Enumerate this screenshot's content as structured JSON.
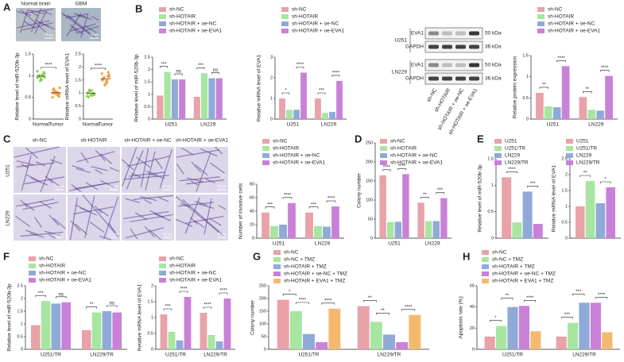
{
  "figure": {
    "micrographs": {
      "A_titles": [
        "Normal brain",
        "GBM"
      ],
      "C_titles": [
        "sh-NC",
        "sh-HOTAIR",
        "sh-HOTAIR + oe-NC",
        "sh-HOTAIR + oe-EVA1"
      ],
      "C_rows": [
        "U251",
        "LN229"
      ],
      "scale": "50 μm"
    },
    "blot": {
      "rows": [
        "EVA1",
        "GAPDH",
        "EVA1",
        "GAPDH"
      ],
      "kda": [
        "50 kDa",
        "36 kDa",
        "50 kDa",
        "36 kDa"
      ],
      "cells": [
        "U251",
        "LN229"
      ],
      "lanes": [
        "sh-NC",
        "sh-HOTAIR",
        "sh-HOTAIR + oe-NC",
        "sh-HOTAIR + oe-EVA1"
      ]
    }
  },
  "chart_data": [
    {
      "type": "strip",
      "panel": "A",
      "ylabel": "Relative level of miR-520b-3p",
      "categories": [
        "Normal",
        "Tumor"
      ],
      "colors": [
        "#8fd14f",
        "#f5a142"
      ],
      "values": [
        [
          0.95,
          1.02,
          0.98,
          1.05,
          0.9,
          1.0,
          1.08,
          0.93,
          0.97,
          1.03,
          0.88,
          1.1,
          0.99,
          1.01,
          0.96
        ],
        [
          0.6,
          0.55,
          0.65,
          0.58,
          0.62,
          0.7,
          0.52,
          0.6,
          0.67,
          0.57,
          0.63,
          0.5,
          0.61,
          0.59,
          0.72
        ]
      ],
      "ylim": [
        0,
        1.5
      ],
      "yticks": [
        0,
        0.5,
        1,
        1.5
      ],
      "significance": [
        [
          "****"
        ]
      ]
    },
    {
      "type": "strip",
      "ylabel": "Relative mRNA level of EVA1",
      "categories": [
        "Normal",
        "Tumor"
      ],
      "colors": [
        "#8fd14f",
        "#f5a142"
      ],
      "values": [
        [
          1.0,
          0.9,
          1.05,
          0.95,
          1.1,
          0.85,
          1.0,
          0.92,
          1.02,
          0.97,
          1.08,
          0.88,
          0.98,
          1.12,
          0.94
        ],
        [
          1.5,
          1.4,
          1.6,
          1.7,
          1.45,
          1.55,
          1.8,
          1.35,
          1.5,
          1.65,
          1.3,
          1.75,
          1.48,
          1.58,
          1.62
        ]
      ],
      "ylim": [
        0,
        2.5
      ],
      "yticks": [
        0,
        0.5,
        1,
        1.5,
        2,
        2.5
      ],
      "significance": [
        [
          "****"
        ]
      ]
    },
    {
      "type": "bar",
      "panel": "B",
      "ylabel": "Relative level of miR-520b-3p",
      "categories": [
        "U251",
        "LN229"
      ],
      "series": [
        {
          "name": "sh-NC",
          "color": "#e8a2a8",
          "values": [
            0.95,
            0.9
          ]
        },
        {
          "name": "sh-HOTAIR",
          "color": "#a6e6a0",
          "values": [
            1.9,
            1.85
          ]
        },
        {
          "name": "sh-HOTAIR + oe-NC",
          "color": "#8faad8",
          "values": [
            1.6,
            1.65
          ]
        },
        {
          "name": "sh-HOTAIR + oe-EVA1",
          "color": "#c981d8",
          "values": [
            1.6,
            1.65
          ]
        }
      ],
      "ylim": [
        0,
        2.5
      ],
      "yticks": [
        0,
        0.5,
        1,
        1.5,
        2,
        2.5
      ],
      "significance": [
        [
          "***",
          "ns"
        ],
        [
          "***",
          "ns"
        ]
      ]
    },
    {
      "type": "bar",
      "ylabel": "Relative mRNA level of EVA1",
      "categories": [
        "U251",
        "LN229"
      ],
      "series": [
        {
          "name": "sh-NC",
          "color": "#e8a2a8",
          "values": [
            1.0,
            1.0
          ]
        },
        {
          "name": "sh-HOTAIR",
          "color": "#a6e6a0",
          "values": [
            0.45,
            0.3
          ]
        },
        {
          "name": "sh-HOTAIR + oe-NC",
          "color": "#8faad8",
          "values": [
            0.45,
            0.35
          ]
        },
        {
          "name": "sh-HOTAIR + oe-EVA1",
          "color": "#c981d8",
          "values": [
            2.25,
            1.85
          ]
        }
      ],
      "ylim": [
        0,
        3
      ],
      "yticks": [
        0,
        1,
        2,
        3
      ],
      "significance": [
        [
          "*",
          "****"
        ],
        [
          "***",
          "****"
        ]
      ]
    },
    {
      "type": "bar",
      "ylabel": "Relative protein expression",
      "categories": [
        "U251",
        "LN229"
      ],
      "series": [
        {
          "name": "sh-NC",
          "color": "#e8a2a8",
          "values": [
            0.62,
            0.52
          ]
        },
        {
          "name": "sh-HOTAIR",
          "color": "#a6e6a0",
          "values": [
            0.3,
            0.22
          ]
        },
        {
          "name": "sh-HOTAIR + oe-NC",
          "color": "#8faad8",
          "values": [
            0.28,
            0.2
          ]
        },
        {
          "name": "sh-HOTAIR + oe-EVA1",
          "color": "#c981d8",
          "values": [
            1.25,
            1.02
          ]
        }
      ],
      "ylim": [
        0,
        1.5
      ],
      "yticks": [
        0,
        0.5,
        1,
        1.5
      ],
      "significance": [
        [
          "**",
          "****"
        ],
        [
          "**",
          "****"
        ]
      ]
    },
    {
      "type": "bar",
      "panel": "C",
      "ylabel": "Number of invasive cells",
      "categories": [
        "U251",
        "LN229"
      ],
      "series": [
        {
          "name": "sh-NC",
          "color": "#e8a2a8",
          "values": [
            38,
            38
          ]
        },
        {
          "name": "sh-HOTAIR",
          "color": "#a6e6a0",
          "values": [
            18,
            18
          ]
        },
        {
          "name": "sh-HOTAIR + oe-NC",
          "color": "#8faad8",
          "values": [
            20,
            17
          ]
        },
        {
          "name": "sh-HOTAIR + oe-EVA1",
          "color": "#c981d8",
          "values": [
            52,
            47
          ]
        }
      ],
      "ylim": [
        0,
        80
      ],
      "yticks": [
        0,
        20,
        40,
        60,
        80
      ],
      "significance": [
        [
          "***",
          "****"
        ],
        [
          "***",
          "****"
        ]
      ]
    },
    {
      "type": "bar",
      "panel": "D",
      "ylabel": "Colony number",
      "categories": [
        "U251",
        "LN229"
      ],
      "series": [
        {
          "name": "sh-NC",
          "color": "#e8a2a8",
          "values": [
            165,
            93
          ]
        },
        {
          "name": "sh-HOTAIR",
          "color": "#a6e6a0",
          "values": [
            42,
            45
          ]
        },
        {
          "name": "sh-HOTAIR + oe-NC",
          "color": "#8faad8",
          "values": [
            43,
            45
          ]
        },
        {
          "name": "sh-HOTAIR + oe-EVA1",
          "color": "#c981d8",
          "values": [
            168,
            105
          ]
        }
      ],
      "ylim": [
        0,
        250
      ],
      "yticks": [
        0,
        50,
        100,
        150,
        200,
        250
      ],
      "significance": [
        [
          "****",
          "****"
        ],
        [
          "**",
          "***"
        ]
      ]
    },
    {
      "type": "bar",
      "panel": "E",
      "ylabel": "Relative level of miR-520b-3p",
      "categories": [
        null
      ],
      "series": [
        {
          "name": "U251",
          "color": "#e8a2a8",
          "values": [
            1.15
          ]
        },
        {
          "name": "U251/TR",
          "color": "#a6e6a0",
          "values": [
            0.3
          ]
        },
        {
          "name": "LN229",
          "color": "#8faad8",
          "values": [
            0.88
          ]
        },
        {
          "name": "LN229/TR",
          "color": "#c981d8",
          "values": [
            0.27
          ]
        }
      ],
      "ylim": [
        0,
        1.5
      ],
      "yticks": [
        0,
        0.5,
        1,
        1.5
      ],
      "significance": [
        [
          "****",
          "***"
        ]
      ]
    },
    {
      "type": "bar",
      "ylabel": "Relative mRNA level of EVA1",
      "categories": [
        null
      ],
      "series": [
        {
          "name": "U251",
          "color": "#e8a2a8",
          "values": [
            1.0
          ]
        },
        {
          "name": "U251/TR",
          "color": "#a6e6a0",
          "values": [
            1.8
          ]
        },
        {
          "name": "LN229",
          "color": "#8faad8",
          "values": [
            1.1
          ]
        },
        {
          "name": "LN229/TR",
          "color": "#c981d8",
          "values": [
            1.6
          ]
        }
      ],
      "ylim": [
        0,
        2.5
      ],
      "yticks": [
        0,
        0.5,
        1,
        1.5,
        2,
        2.5
      ],
      "significance": [
        [
          "**",
          "*"
        ]
      ]
    },
    {
      "type": "bar",
      "panel": "F",
      "ylabel": "Relative level of miR-520b-3p",
      "categories": [
        "U251/TR",
        "LN229/TR"
      ],
      "series": [
        {
          "name": "sh-NC",
          "color": "#e8a2a8",
          "values": [
            0.95,
            0.75
          ]
        },
        {
          "name": "sh-HOTAIR",
          "color": "#a6e6a0",
          "values": [
            1.9,
            1.45
          ]
        },
        {
          "name": "sh-HOTAIR + oe-NC",
          "color": "#8faad8",
          "values": [
            1.8,
            1.5
          ]
        },
        {
          "name": "sh-HOTAIR + oe-EVA1",
          "color": "#c981d8",
          "values": [
            1.85,
            1.45
          ]
        }
      ],
      "ylim": [
        0,
        2.5
      ],
      "yticks": [
        0,
        0.5,
        1,
        1.5,
        2,
        2.5
      ],
      "significance": [
        [
          "***",
          "ns"
        ],
        [
          "**",
          "ns"
        ]
      ]
    },
    {
      "type": "bar",
      "ylabel": "Relative mRNA level of EVA1",
      "categories": [
        "U251/TR",
        "LN229/TR"
      ],
      "series": [
        {
          "name": "sh-NC",
          "color": "#e8a2a8",
          "values": [
            1.1,
            1.15
          ]
        },
        {
          "name": "sh-HOTAIR",
          "color": "#a6e6a0",
          "values": [
            0.55,
            0.45
          ]
        },
        {
          "name": "sh-HOTAIR + oe-NC",
          "color": "#8faad8",
          "values": [
            0.28,
            0.25
          ]
        },
        {
          "name": "sh-HOTAIR + oe-EVA1",
          "color": "#c981d8",
          "values": [
            1.65,
            1.6
          ]
        }
      ],
      "ylim": [
        0,
        2
      ],
      "yticks": [
        0,
        0.5,
        1,
        1.5,
        2
      ],
      "significance": [
        [
          "***",
          "****"
        ],
        [
          "****",
          "****"
        ]
      ]
    },
    {
      "type": "bar",
      "panel": "G",
      "ylabel": "Colony number",
      "categories": [
        "U251/TR",
        "LN229/TR"
      ],
      "series": [
        {
          "name": "sh-NC",
          "color": "#e8a2a8",
          "values": [
            195,
            170
          ]
        },
        {
          "name": "sh-NC + TMZ",
          "color": "#a6e6a0",
          "values": [
            150,
            108
          ]
        },
        {
          "name": "sh-HOTAIR + TMZ",
          "color": "#8faad8",
          "values": [
            60,
            58
          ]
        },
        {
          "name": "sh-HOTAIR + oe-NC + TMZ",
          "color": "#c981d8",
          "values": [
            28,
            28
          ]
        },
        {
          "name": "sh-HOTAIR + EVA1 + TMZ",
          "color": "#f5b96e",
          "values": [
            160,
            135
          ]
        }
      ],
      "ylim": [
        0,
        250
      ],
      "yticks": [
        0,
        50,
        100,
        150,
        200,
        250
      ],
      "significance": [
        [
          "*",
          "****",
          "****"
        ],
        [
          "**",
          "**",
          "****"
        ]
      ]
    },
    {
      "type": "bar",
      "panel": "H",
      "ylabel": "Apoptosis rate (%)",
      "categories": [
        "U251/TR",
        "LN229/TR"
      ],
      "series": [
        {
          "name": "sh-NC",
          "color": "#e8a2a8",
          "values": [
            12,
            12
          ]
        },
        {
          "name": "sh-NC + TMZ",
          "color": "#a6e6a0",
          "values": [
            22,
            25
          ]
        },
        {
          "name": "sh-HOTAIR + TMZ",
          "color": "#8faad8",
          "values": [
            40,
            44
          ]
        },
        {
          "name": "sh-HOTAIR + oe-NC + TMZ",
          "color": "#c981d8",
          "values": [
            41,
            44
          ]
        },
        {
          "name": "sh-HOTAIR + EVA1 + TMZ",
          "color": "#f5b96e",
          "values": [
            17,
            16
          ]
        }
      ],
      "ylim": [
        0,
        60
      ],
      "yticks": [
        0,
        20,
        40,
        60
      ],
      "significance": [
        [
          "*",
          "**",
          "****"
        ],
        [
          "***",
          "***",
          "****"
        ]
      ]
    }
  ]
}
